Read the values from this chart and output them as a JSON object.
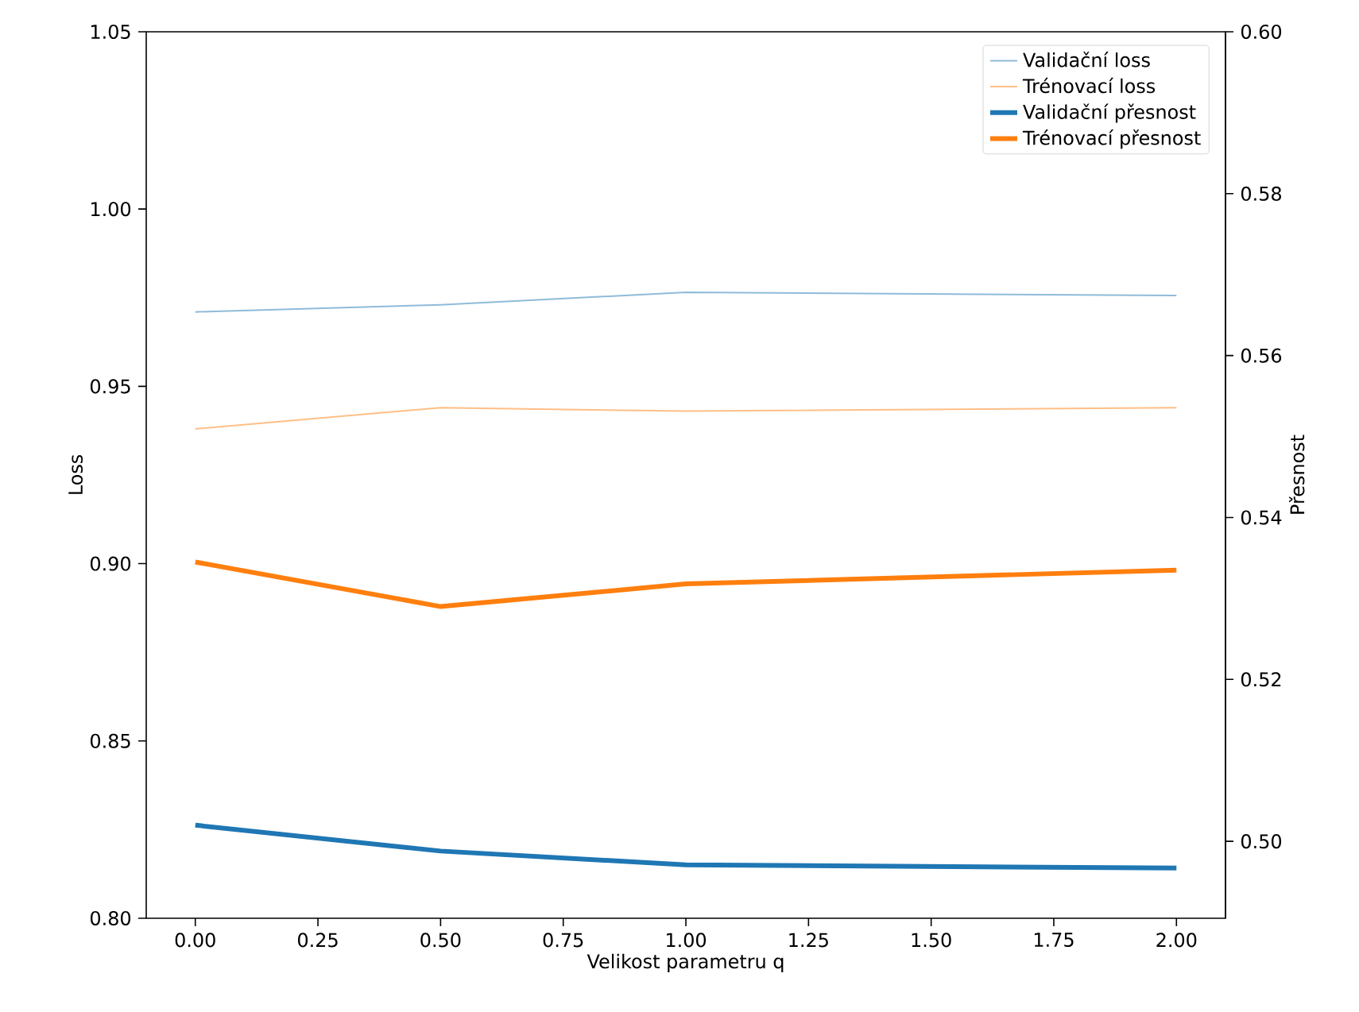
{
  "chart_data": {
    "type": "line",
    "xlabel": "Velikost parametru q",
    "ylabel": "Loss",
    "y2label": "Přesnost",
    "x": [
      0,
      0.5,
      1,
      2
    ],
    "series": [
      {
        "name": "Validační loss",
        "color": "#8fbbd9",
        "values": [
          0.971,
          0.973,
          0.9765,
          0.9756
        ]
      },
      {
        "name": "Trénovací loss",
        "color": "#ffbf86",
        "values": [
          0.938,
          0.944,
          0.943,
          0.944
        ]
      },
      {
        "name": "Validační přesnost",
        "color": "#1f77b4",
        "axis": "y2",
        "values": [
          0.502,
          0.4988,
          0.4971,
          0.4967
        ]
      },
      {
        "name": "Trénovací přesnost",
        "color": "#ff7f0e",
        "axis": "y2",
        "values": [
          0.5345,
          0.529,
          0.5318,
          0.5335
        ]
      }
    ],
    "xlim": [
      -0.1,
      2.1
    ],
    "xticks": [
      {
        "value": 0,
        "label": "0.00"
      },
      {
        "value": 0.25,
        "label": "0.25"
      },
      {
        "value": 0.5,
        "label": "0.50"
      },
      {
        "value": 0.75,
        "label": "0.75"
      },
      {
        "value": 1,
        "label": "1.00"
      },
      {
        "value": 1.25,
        "label": "1.25"
      },
      {
        "value": 1.5,
        "label": "1.50"
      },
      {
        "value": 1.75,
        "label": "1.75"
      },
      {
        "value": 2,
        "label": "2.00"
      }
    ],
    "ylim": [
      0.8,
      1.05
    ],
    "yticks": [
      {
        "value": 0.8,
        "label": "0.80"
      },
      {
        "value": 0.85,
        "label": "0.85"
      },
      {
        "value": 0.9,
        "label": "0.90"
      },
      {
        "value": 0.95,
        "label": "0.95"
      },
      {
        "value": 1.0,
        "label": "1.00"
      },
      {
        "value": 1.05,
        "label": "1.05"
      }
    ],
    "y2lim": [
      0.4905,
      0.6
    ],
    "y2ticks": [
      {
        "value": 0.5,
        "label": "0.50"
      },
      {
        "value": 0.52,
        "label": "0.52"
      },
      {
        "value": 0.54,
        "label": "0.54"
      },
      {
        "value": 0.56,
        "label": "0.56"
      },
      {
        "value": 0.58,
        "label": "0.58"
      },
      {
        "value": 0.6,
        "label": "0.60"
      }
    ],
    "legend": "top right"
  }
}
